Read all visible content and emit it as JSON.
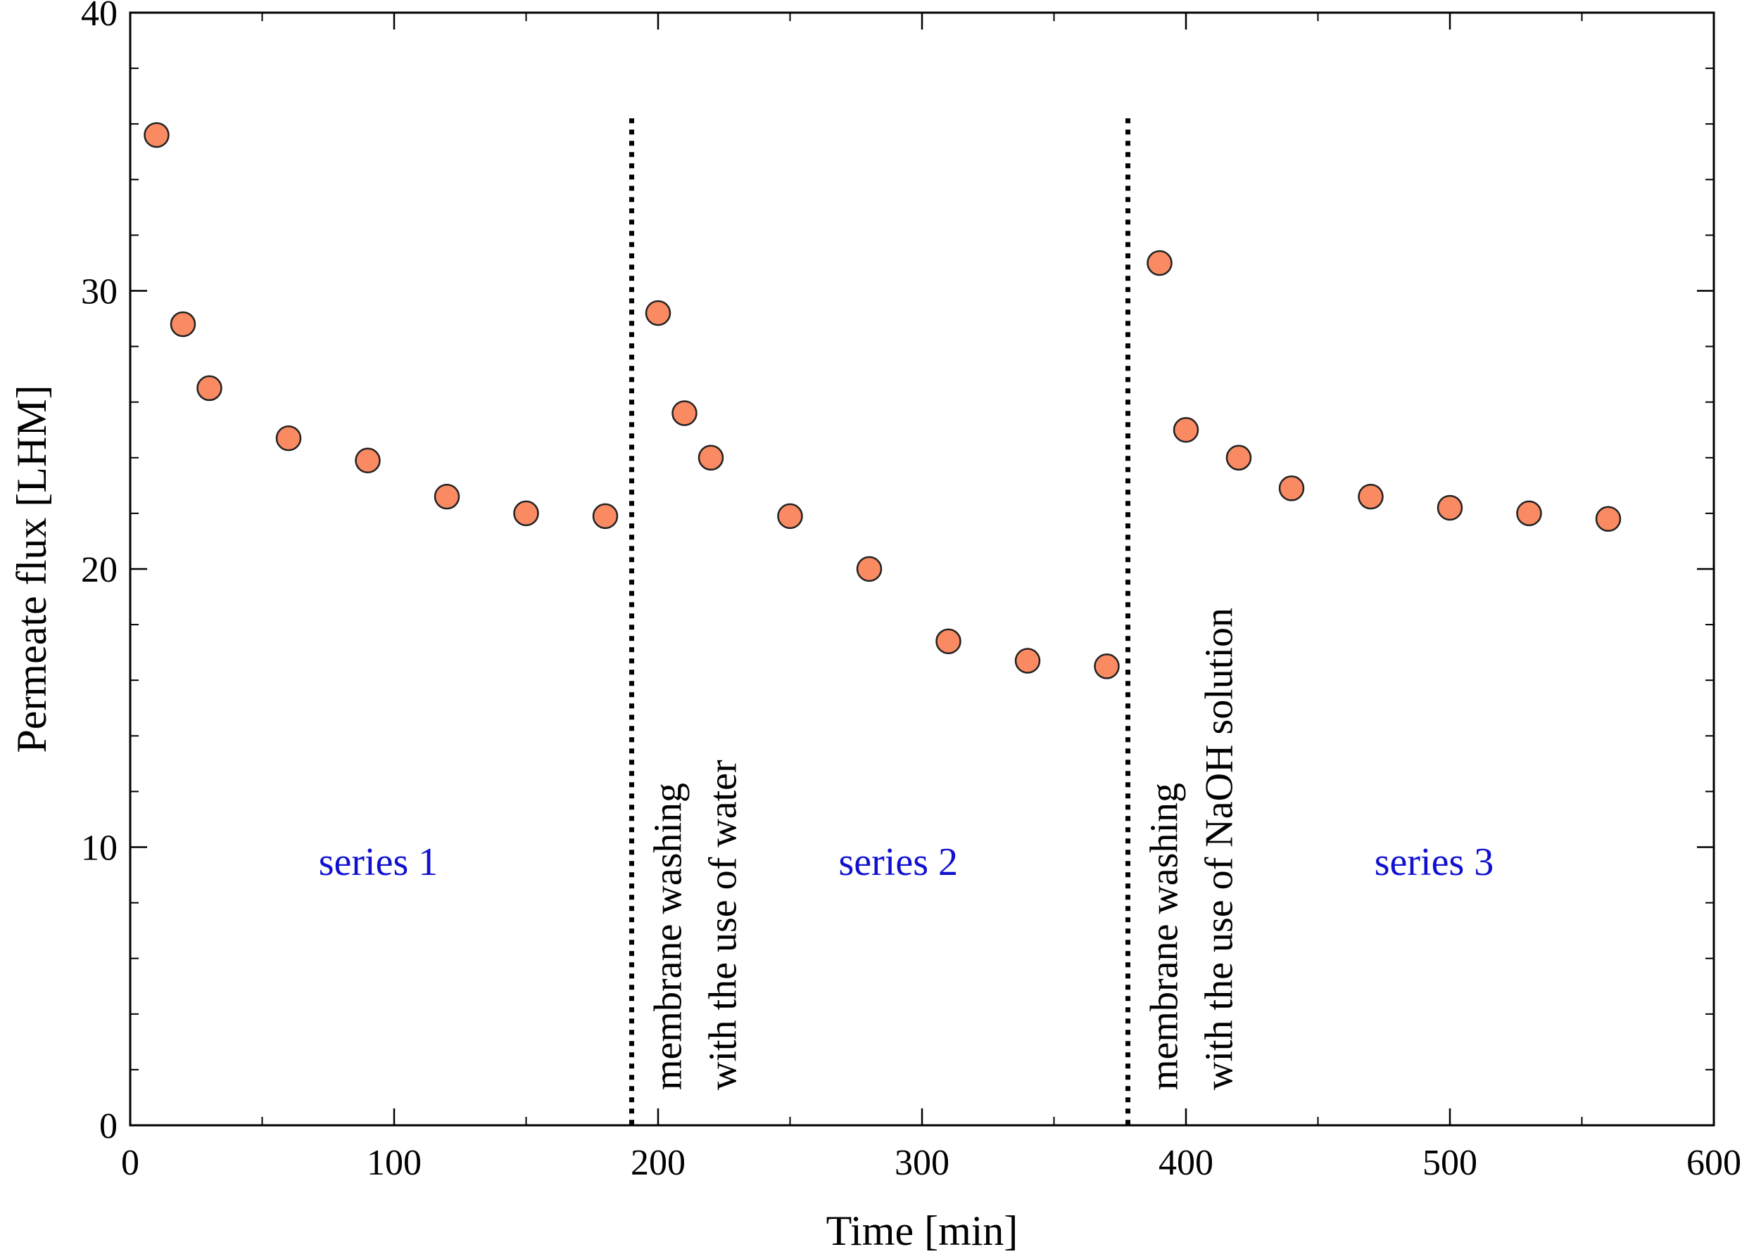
{
  "chart_data": {
    "type": "scatter",
    "title": "",
    "xlabel": "Time [min]",
    "ylabel": "Permeate flux [LHM]",
    "xlim": [
      0,
      600
    ],
    "ylim": [
      0,
      40
    ],
    "xticks": [
      0,
      100,
      200,
      300,
      400,
      500,
      600
    ],
    "yticks": [
      0,
      10,
      20,
      30,
      40
    ],
    "x_minor_step": 50,
    "y_minor_step": 2,
    "grid": false,
    "marker_color": "#FA8A62",
    "marker_edge_color": "#222222",
    "series_label_color": "#1010D0",
    "series": [
      {
        "name": "series 1",
        "x": [
          10,
          20,
          30,
          60,
          90,
          120,
          150,
          180
        ],
        "y": [
          35.6,
          28.8,
          26.5,
          24.7,
          23.9,
          22.6,
          22.0,
          21.9
        ]
      },
      {
        "name": "series 2",
        "x": [
          200,
          210,
          220,
          250,
          280,
          310,
          340,
          370
        ],
        "y": [
          29.2,
          25.6,
          24.0,
          21.9,
          20.0,
          17.4,
          16.7,
          16.5
        ]
      },
      {
        "name": "series 3",
        "x": [
          390,
          400,
          420,
          440,
          470,
          500,
          530,
          560
        ],
        "y": [
          31.0,
          25.0,
          24.0,
          22.9,
          22.6,
          22.2,
          22.0,
          21.8
        ]
      }
    ],
    "vertical_lines": [
      {
        "x": 190,
        "y_top": 36.2,
        "label_lines": [
          "membrane washing",
          "with the use of water"
        ]
      },
      {
        "x": 378,
        "y_top": 36.2,
        "label_lines": [
          "membrane washing",
          "with the use of NaOH solution"
        ]
      }
    ],
    "series_labels": [
      {
        "text": "series 1",
        "x": 94,
        "y": 9
      },
      {
        "text": "series 2",
        "x": 291,
        "y": 9
      },
      {
        "text": "series 3",
        "x": 494,
        "y": 9
      }
    ]
  }
}
